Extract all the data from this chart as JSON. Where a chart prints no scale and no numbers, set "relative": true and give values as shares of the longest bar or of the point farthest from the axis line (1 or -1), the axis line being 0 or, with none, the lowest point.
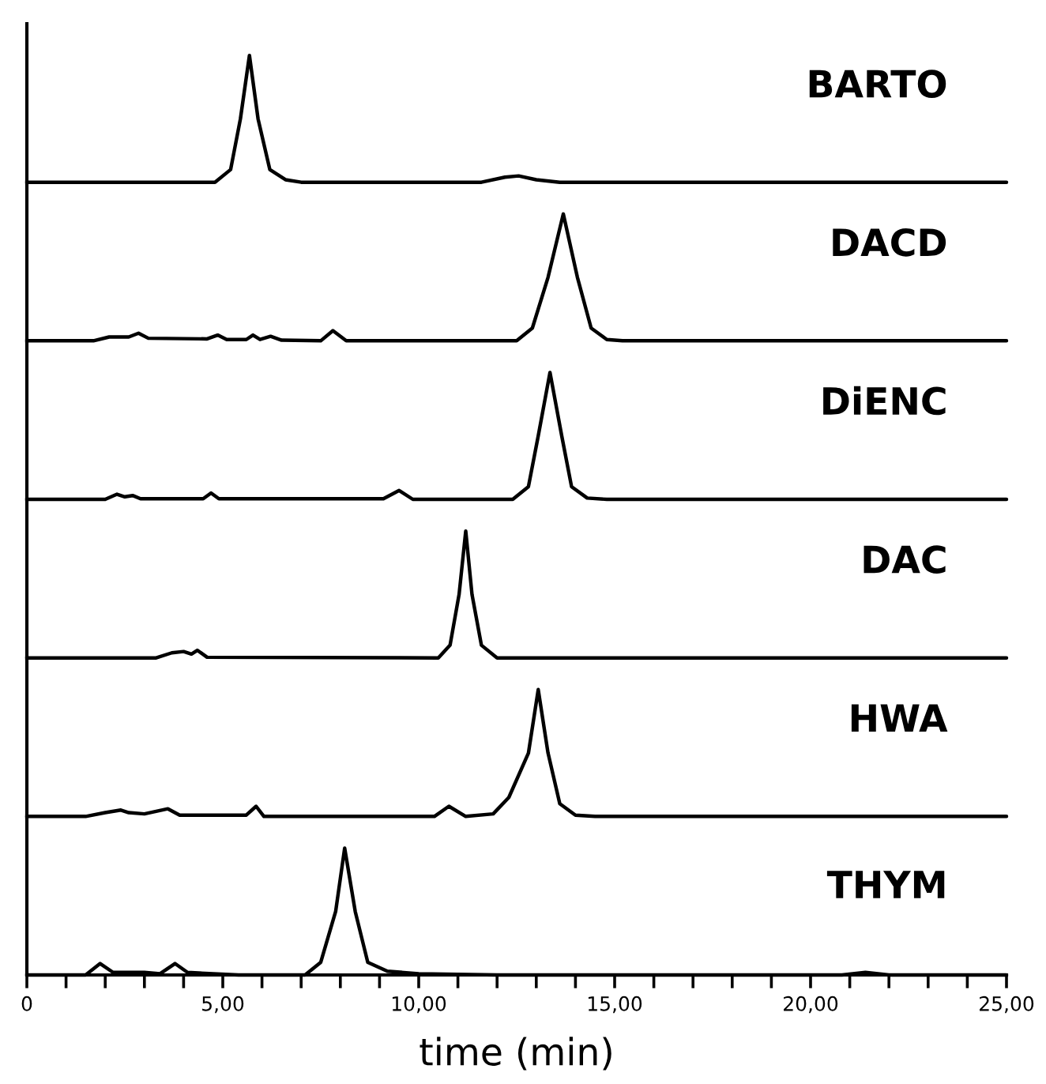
{
  "chart_data": [
    {
      "type": "line",
      "relative": true,
      "xlim": [
        0,
        25
      ],
      "tick_labels": false,
      "series": [
        {
          "name": "BARTO",
          "color": "#000000",
          "x": [
            0,
            4.8,
            5.2,
            5.45,
            5.68,
            5.9,
            6.2,
            6.6,
            7,
            11.6,
            12.2,
            12.55,
            13,
            13.6,
            25
          ],
          "values": [
            0,
            0,
            0.1,
            0.5,
            1,
            0.5,
            0.1,
            0.02,
            0,
            0,
            0.04,
            0.05,
            0.02,
            0,
            0
          ]
        }
      ]
    },
    {
      "type": "line",
      "relative": true,
      "xlim": [
        0,
        25
      ],
      "tick_labels": false,
      "series": [
        {
          "name": "DACD",
          "color": "#000000",
          "x": [
            0,
            1.7,
            2.1,
            2.6,
            2.85,
            3.1,
            4.6,
            4.87,
            5.1,
            5.6,
            5.77,
            5.95,
            6.22,
            6.5,
            7.5,
            7.81,
            8.15,
            12.5,
            12.9,
            13.3,
            13.69,
            14.05,
            14.4,
            14.8,
            15.2,
            25
          ],
          "values": [
            0,
            0,
            0.03,
            0.03,
            0.06,
            0.02,
            0.015,
            0.045,
            0.01,
            0.01,
            0.045,
            0.01,
            0.035,
            0.005,
            0,
            0.08,
            0,
            0,
            0.1,
            0.5,
            1,
            0.5,
            0.1,
            0.01,
            0,
            0
          ]
        }
      ]
    },
    {
      "type": "line",
      "relative": true,
      "xlim": [
        0,
        25
      ],
      "tick_labels": false,
      "series": [
        {
          "name": "DiENC",
          "color": "#000000",
          "x": [
            0,
            2.0,
            2.3,
            2.5,
            2.7,
            2.9,
            4.5,
            4.7,
            4.9,
            9.1,
            9.5,
            9.85,
            12.4,
            12.8,
            13.05,
            13.35,
            13.65,
            13.9,
            14.3,
            14.8,
            25
          ],
          "values": [
            0,
            0,
            0.04,
            0.02,
            0.03,
            0.005,
            0.005,
            0.05,
            0.005,
            0.005,
            0.07,
            0,
            0,
            0.1,
            0.5,
            1,
            0.5,
            0.1,
            0.01,
            0,
            0
          ]
        }
      ]
    },
    {
      "type": "line",
      "relative": true,
      "xlim": [
        0,
        25
      ],
      "tick_labels": false,
      "series": [
        {
          "name": "DAC",
          "color": "#000000",
          "x": [
            0,
            3.3,
            3.7,
            4.0,
            4.2,
            4.35,
            4.6,
            10.5,
            10.8,
            11.03,
            11.2,
            11.36,
            11.6,
            12.0,
            25
          ],
          "values": [
            0,
            0,
            0.04,
            0.05,
            0.03,
            0.06,
            0.005,
            0,
            0.1,
            0.5,
            1,
            0.5,
            0.1,
            0,
            0
          ]
        }
      ]
    },
    {
      "type": "line",
      "relative": true,
      "xlim": [
        0,
        25
      ],
      "tick_labels": false,
      "series": [
        {
          "name": "HWA",
          "color": "#000000",
          "x": [
            0,
            1.5,
            2.0,
            2.4,
            2.6,
            3.0,
            3.6,
            3.9,
            5.6,
            5.85,
            6.05,
            10.4,
            10.77,
            11.2,
            11.9,
            12.3,
            12.8,
            13.05,
            13.3,
            13.6,
            14.0,
            14.5,
            25
          ],
          "values": [
            0,
            0,
            0.03,
            0.05,
            0.03,
            0.02,
            0.06,
            0.01,
            0.01,
            0.08,
            0,
            0,
            0.08,
            0,
            0.02,
            0.15,
            0.5,
            1,
            0.5,
            0.1,
            0.01,
            0,
            0
          ]
        }
      ]
    },
    {
      "type": "line",
      "relative": true,
      "xlim": [
        0,
        25
      ],
      "tick_labels": "x",
      "xlabel": "time (min)",
      "xticks": [
        {
          "value": 0,
          "label": "0"
        },
        {
          "value": 1,
          "label": null
        },
        {
          "value": 2,
          "label": null
        },
        {
          "value": 3,
          "label": null
        },
        {
          "value": 4,
          "label": null
        },
        {
          "value": 5,
          "label": "5,00"
        },
        {
          "value": 6,
          "label": null
        },
        {
          "value": 7,
          "label": null
        },
        {
          "value": 8,
          "label": null
        },
        {
          "value": 9,
          "label": null
        },
        {
          "value": 10,
          "label": "10,00"
        },
        {
          "value": 11,
          "label": null
        },
        {
          "value": 12,
          "label": null
        },
        {
          "value": 13,
          "label": null
        },
        {
          "value": 14,
          "label": null
        },
        {
          "value": 15,
          "label": "15,00"
        },
        {
          "value": 16,
          "label": null
        },
        {
          "value": 17,
          "label": null
        },
        {
          "value": 18,
          "label": null
        },
        {
          "value": 19,
          "label": null
        },
        {
          "value": 20,
          "label": "20,00"
        },
        {
          "value": 21,
          "label": null
        },
        {
          "value": 22,
          "label": null
        },
        {
          "value": 23,
          "label": null
        },
        {
          "value": 24,
          "label": null
        },
        {
          "value": 25,
          "label": "25,00"
        }
      ],
      "series": [
        {
          "name": "THYM",
          "color": "#000000",
          "x": [
            0,
            1.5,
            1.87,
            2.2,
            3.0,
            3.4,
            3.78,
            4.1,
            5.4,
            7.1,
            7.5,
            7.88,
            8.11,
            8.38,
            8.7,
            9.2,
            10,
            12,
            20.8,
            21.4,
            22,
            25
          ],
          "values": [
            0,
            0,
            0.09,
            0.02,
            0.02,
            0.01,
            0.09,
            0.02,
            0,
            0,
            0.1,
            0.5,
            1,
            0.5,
            0.1,
            0.03,
            0.01,
            0,
            0,
            0.02,
            0,
            0
          ]
        }
      ]
    }
  ]
}
